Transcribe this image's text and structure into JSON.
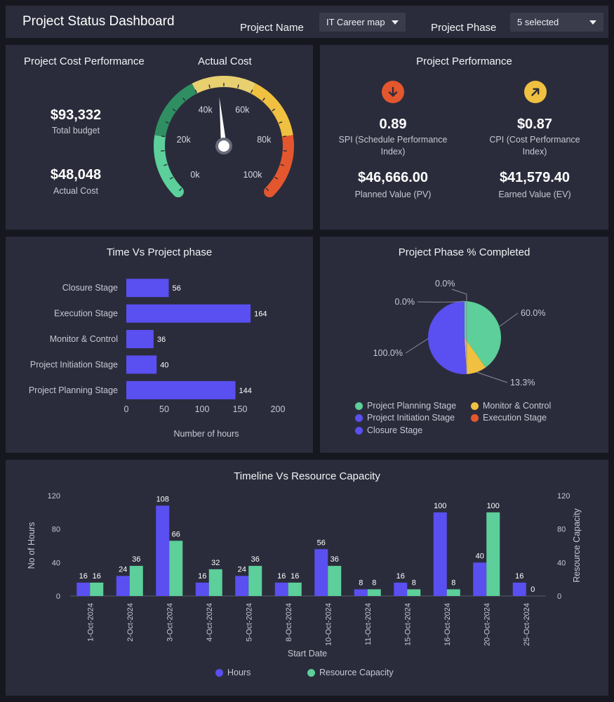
{
  "header": {
    "title": "Project Status Dashboard",
    "project_name_label": "Project Name",
    "project_name_value": "IT Career map",
    "project_phase_label": "Project Phase",
    "project_phase_value": "5 selected"
  },
  "cost_panel": {
    "title": "Project Cost Performance",
    "gauge_title": "Actual Cost",
    "total_budget_value": "$93,332",
    "total_budget_label": "Total budget",
    "actual_cost_value": "$48,048",
    "actual_cost_label": "Actual Cost",
    "gauge": {
      "min": 0,
      "max": 100000,
      "value": 48048,
      "tick_labels": [
        "0k",
        "20k",
        "40k",
        "60k",
        "80k",
        "100k"
      ]
    }
  },
  "performance_panel": {
    "title": "Project Performance",
    "spi_value": "0.89",
    "spi_label": "SPI (Schedule Performance Index)",
    "cpi_value": "$0.87",
    "cpi_label": "CPI (Cost Performance Index)",
    "pv_value": "$46,666.00",
    "pv_label": "Planned Value (PV)",
    "ev_value": "$41,579.40",
    "ev_label": "Earned Value (EV)",
    "spi_icon": "arrow-down-icon",
    "cpi_icon": "arrow-up-right-icon",
    "spi_color": "#e4572e",
    "cpi_color": "#f0c040"
  },
  "chart_data": [
    {
      "type": "bar",
      "orientation": "horizontal",
      "title": "Time Vs Project phase",
      "categories": [
        "Closure Stage",
        "Execution Stage",
        "Monitor & Control",
        "Project Initiation Stage",
        "Project Planning Stage"
      ],
      "values": [
        56,
        164,
        36,
        40,
        144
      ],
      "xlabel": "Number of hours",
      "xlim": [
        0,
        200
      ],
      "xticks": [
        "0",
        "50",
        "100",
        "150",
        "200"
      ],
      "color": "#5a4ff0"
    },
    {
      "type": "pie",
      "title": "Project Phase % Completed",
      "slices": [
        {
          "name": "Project Planning Stage",
          "label": "60.0%",
          "share": 0.402,
          "color": "#5ccf9a"
        },
        {
          "name": "Monitor & Control",
          "label": "13.3%",
          "share": 0.089,
          "color": "#f0c040"
        },
        {
          "name": "Execution Stage",
          "label": "0.0%",
          "share": 0.0,
          "color": "#e4572e"
        },
        {
          "name": "Project Initiation Stage",
          "label": "100.0%",
          "share": 0.509,
          "color": "#5a4ff0"
        },
        {
          "name": "Closure Stage",
          "label": "0.0%",
          "share": 0.0,
          "color": "#5a4ff0"
        }
      ],
      "legend": [
        "Project Planning Stage",
        "Monitor & Control",
        "Project Initiation Stage",
        "Execution Stage",
        "Closure Stage"
      ]
    },
    {
      "type": "bar",
      "title": "Timeline Vs Resource Capacity",
      "categories": [
        "1-Oct-2024",
        "2-Oct-2024",
        "3-Oct-2024",
        "4-Oct-2024",
        "5-Oct-2024",
        "8-Oct-2024",
        "10-Oct-2024",
        "11-Oct-2024",
        "15-Oct-2024",
        "16-Oct-2024",
        "20-Oct-2024",
        "25-Oct-2024"
      ],
      "series": [
        {
          "name": "Hours",
          "values": [
            16,
            24,
            108,
            16,
            24,
            16,
            56,
            8,
            16,
            100,
            40,
            16
          ],
          "color": "#5a4ff0"
        },
        {
          "name": "Resource Capacity",
          "values": [
            16,
            36,
            66,
            32,
            36,
            16,
            36,
            8,
            8,
            8,
            100,
            0
          ],
          "color": "#5ccf9a"
        }
      ],
      "xlabel": "Start Date",
      "ylabel": "No of Hours",
      "y2label": "Resource Capacity",
      "ylim": [
        0,
        120
      ],
      "yticks": [
        "0",
        "40",
        "80",
        "120"
      ]
    }
  ]
}
